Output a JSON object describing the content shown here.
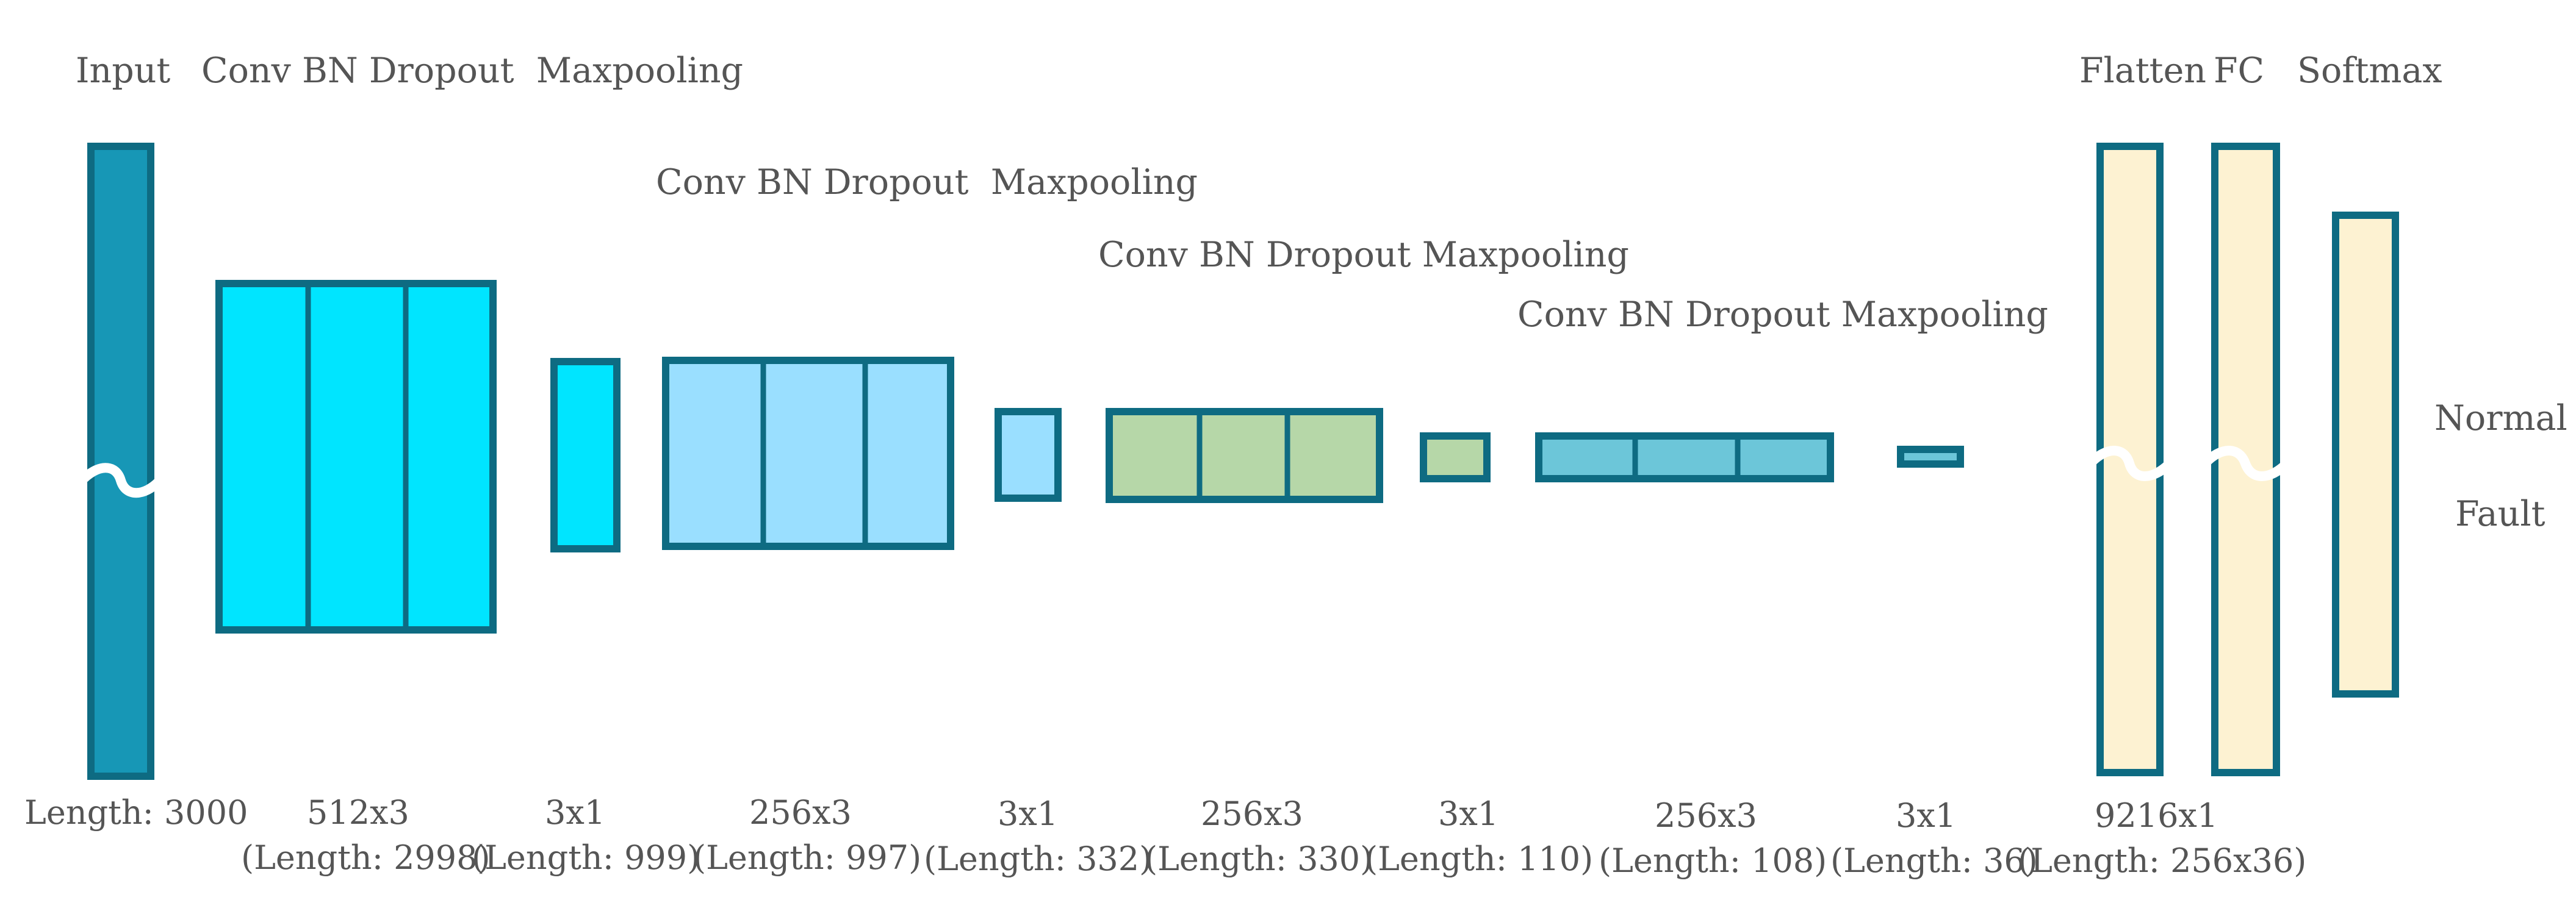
{
  "colors": {
    "stroke": "#0e6b82",
    "input_fill": "#1797b6",
    "block1_fill": "#00e5ff",
    "block2_fill": "#9adfff",
    "block3_fill": "#b6d7a8",
    "block4_fill": "#6cc6d9",
    "dense_fill": "#fdf2d2",
    "text": "#555555"
  },
  "headers": {
    "input": "Input",
    "stage1": "Conv BN Dropout  Maxpooling",
    "stage2": "Conv BN Dropout  Maxpooling",
    "stage3": "Conv BN Dropout Maxpooling",
    "stage4": "Conv BN Dropout Maxpooling",
    "flatten": "Flatten",
    "fc": "FC",
    "softmax": "Softmax"
  },
  "dimensions": {
    "input": "Length: 3000",
    "conv1_size": "512x3",
    "conv1_len": "(Length: 2998)",
    "pool1_size": "3x1",
    "pool1_len": "(Length: 999)",
    "conv2_size": "256x3",
    "conv2_len": "(Length: 997)",
    "pool2_size": "3x1",
    "pool2_len": "(Length: 332)",
    "conv3_size": "256x3",
    "conv3_len": "(Length: 330)",
    "pool3_size": "3x1",
    "pool3_len": "(Length: 110)",
    "conv4_size": "256x3",
    "conv4_len": "(Length: 108)",
    "pool4_size": "3x1",
    "pool4_len": "(Length: 36)",
    "flatten_size": "9216x1",
    "flatten_len": "(Length: 256x36)"
  },
  "outputs": {
    "class1": "Normal",
    "class2": "Fault"
  }
}
